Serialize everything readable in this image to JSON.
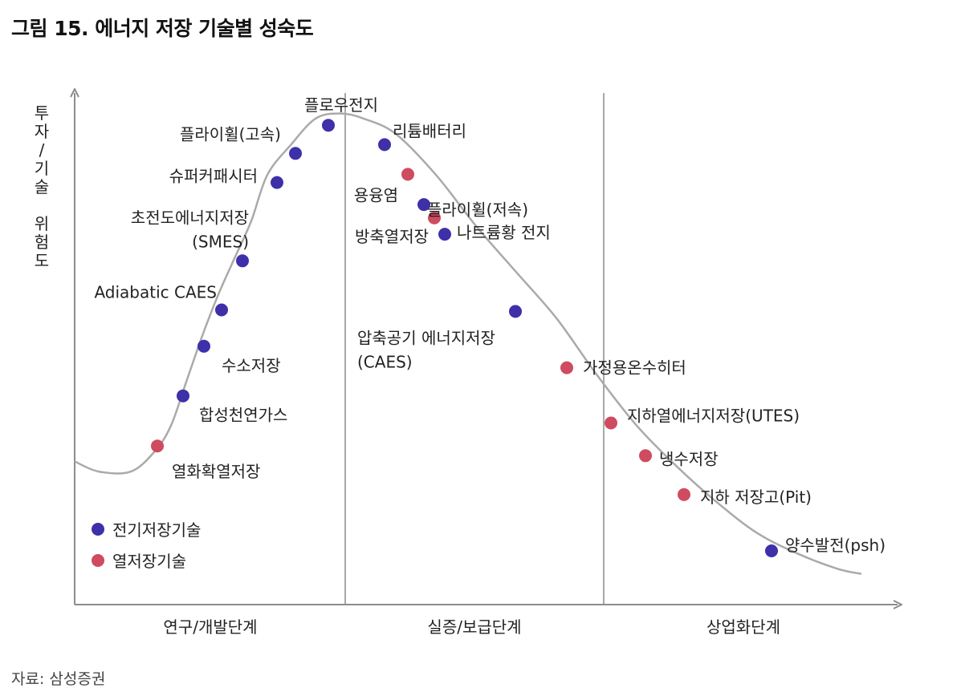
{
  "header": {
    "title": "그림 15. 에너지 저장 기술별 성숙도"
  },
  "source": "자료: 삼성증권",
  "colors": {
    "electric": "#3d30a8",
    "thermal": "#cf4b5f",
    "curve": "#aaaaaa",
    "axis": "#8c8c8c"
  },
  "chart_data": {
    "type": "scatter",
    "title": "에너지 저장 기술별 성숙도",
    "ylabel_chars": [
      "투",
      "자",
      "/",
      "기",
      "술",
      " ",
      "위",
      "험",
      "도"
    ],
    "xlabel": "",
    "xlim": [
      0,
      100
    ],
    "ylim": [
      0,
      100
    ],
    "stages": [
      {
        "label": "연구/개발단계",
        "range": [
          0,
          33
        ]
      },
      {
        "label": "실증/보급단계",
        "range": [
          33,
          65
        ]
      },
      {
        "label": "상업화단계",
        "range": [
          65,
          100
        ]
      }
    ],
    "legend": [
      {
        "label": "전기저장기술",
        "category": "electric"
      },
      {
        "label": "열저장기술",
        "category": "thermal"
      }
    ],
    "curve": [
      [
        0,
        28
      ],
      [
        3,
        26
      ],
      [
        7,
        26
      ],
      [
        10,
        30
      ],
      [
        12,
        35
      ],
      [
        14,
        44
      ],
      [
        16,
        53
      ],
      [
        18,
        61
      ],
      [
        20,
        68
      ],
      [
        22,
        75
      ],
      [
        24,
        84
      ],
      [
        27,
        90
      ],
      [
        30,
        95
      ],
      [
        33,
        96
      ],
      [
        36,
        95
      ],
      [
        40,
        92
      ],
      [
        45,
        84
      ],
      [
        50,
        74
      ],
      [
        55,
        65
      ],
      [
        60,
        56
      ],
      [
        65,
        45
      ],
      [
        70,
        35
      ],
      [
        75,
        27
      ],
      [
        80,
        20
      ],
      [
        85,
        14
      ],
      [
        90,
        10
      ],
      [
        95,
        7
      ],
      [
        98,
        6
      ]
    ],
    "points": [
      {
        "name": "열화확열저장",
        "category": "thermal",
        "x": 10.3,
        "y": 31
      },
      {
        "name": "합성천연가스",
        "category": "electric",
        "x": 13.5,
        "y": 40.8
      },
      {
        "name": "수소저장",
        "category": "electric",
        "x": 16.1,
        "y": 50.5
      },
      {
        "name": "Adiabatic CAES",
        "category": "electric",
        "x": 18.3,
        "y": 57.6
      },
      {
        "name": "초전도에너지저장 (SMES)",
        "category": "electric",
        "x": 20.9,
        "y": 67.2
      },
      {
        "name": "슈퍼커패시터",
        "category": "electric",
        "x": 25.2,
        "y": 82.5
      },
      {
        "name": "플라이휠(고속)",
        "category": "electric",
        "x": 27.5,
        "y": 88.2
      },
      {
        "name": "플로우전지",
        "category": "electric",
        "x": 31.6,
        "y": 93.7
      },
      {
        "name": "리튬배터리",
        "category": "electric",
        "x": 38.6,
        "y": 89.9
      },
      {
        "name": "용융염",
        "category": "thermal",
        "x": 41.5,
        "y": 84.1
      },
      {
        "name": "방축열저장",
        "category": "electric",
        "x": 43.5,
        "y": 78.2
      },
      {
        "name": "플라이휠(저속)",
        "category": "thermal",
        "x": 44.8,
        "y": 75.6
      },
      {
        "name": "나트륨황 전지",
        "category": "electric",
        "x": 46.1,
        "y": 72.4
      },
      {
        "name": "압축공기 에너지저장 (CAES)",
        "category": "electric",
        "x": 54.9,
        "y": 57.3
      },
      {
        "name": "가정용온수히터",
        "category": "thermal",
        "x": 61.3,
        "y": 46.3
      },
      {
        "name": "지하열에너지저장(UTES)",
        "category": "thermal",
        "x": 66.8,
        "y": 35.5
      },
      {
        "name": "냉수저장",
        "category": "thermal",
        "x": 71.1,
        "y": 29.1
      },
      {
        "name": "지하 저장고(Pit)",
        "category": "thermal",
        "x": 75.9,
        "y": 21.5
      },
      {
        "name": "양수발전(psh)",
        "category": "electric",
        "x": 86.8,
        "y": 10.5
      }
    ]
  }
}
